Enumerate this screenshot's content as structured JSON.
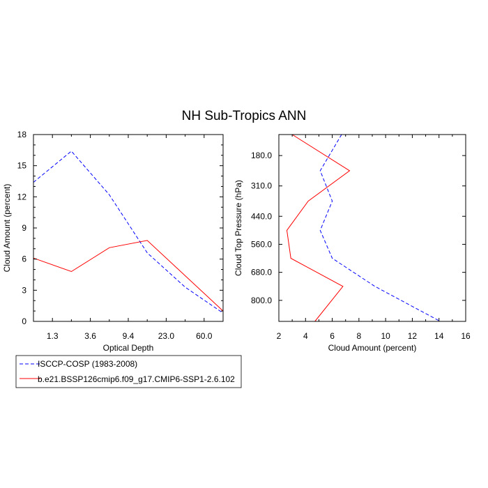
{
  "title": "NH Sub-Tropics ANN",
  "colors": {
    "obs": "#0000ff",
    "model": "#ff0000"
  },
  "legend": {
    "items": [
      {
        "label": "ISCCP-COSP (1983-2008)",
        "color": "#0000ff",
        "style": "dashed"
      },
      {
        "label": "b.e21.BSSP126cmip6.f09_g17.CMIP6-SSP1-2.6.102",
        "color": "#ff0000",
        "style": "solid"
      }
    ]
  },
  "chart_data": [
    {
      "type": "line",
      "title": "NH Sub-Tropics ANN",
      "xlabel": "Optical Depth",
      "ylabel": "Cloud Amount (percent)",
      "categories": [
        "0.3",
        "1.3",
        "2.5",
        "3.6",
        "6.5",
        "9.4",
        "15.0",
        "23.0",
        "41.0",
        "60.0",
        "100.0"
      ],
      "xtick_labels": [
        "1.3",
        "3.6",
        "9.4",
        "23.0",
        "60.0"
      ],
      "ylim": [
        0,
        18
      ],
      "yticks": [
        0,
        3,
        6,
        9,
        12,
        15,
        18
      ],
      "grid": false,
      "series": [
        {
          "name": "ISCCP-COSP (1983-2008)",
          "color": "#0000ff",
          "style": "dashed",
          "x": [
            0.3,
            2.5,
            6.5,
            15.0,
            41.0,
            100.0
          ],
          "values": [
            13.4,
            16.4,
            12.2,
            6.6,
            3.3,
            0.8
          ]
        },
        {
          "name": "b.e21.BSSP126cmip6.f09_g17.CMIP6-SSP1-2.6.102",
          "color": "#ff0000",
          "style": "solid",
          "x": [
            0.3,
            2.5,
            6.5,
            15.0,
            41.0,
            100.0
          ],
          "values": [
            6.1,
            4.8,
            7.1,
            7.8,
            4.4,
            1.0
          ]
        }
      ]
    },
    {
      "type": "line",
      "title": "",
      "xlabel": "Cloud Amount (percent)",
      "ylabel": "Cloud Top Pressure (hPa)",
      "xlim": [
        2,
        16
      ],
      "xticks": [
        2,
        4,
        6,
        8,
        10,
        12,
        14,
        16
      ],
      "ylim": [
        90,
        890
      ],
      "y_reversed": true,
      "yticks": [
        180.0,
        310.0,
        440.0,
        560.0,
        680.0,
        800.0
      ],
      "ytick_labels": [
        "180.0",
        "310.0",
        "440.0",
        "560.0",
        "680.0",
        "800.0"
      ],
      "grid": false,
      "series": [
        {
          "name": "ISCCP-COSP (1983-2008)",
          "color": "#0000ff",
          "style": "dashed",
          "y": [
            90,
            245,
            375,
            500,
            620,
            740,
            890
          ],
          "values": [
            6.7,
            5.1,
            6.0,
            5.1,
            6.0,
            9.2,
            14.1
          ]
        },
        {
          "name": "b.e21.BSSP126cmip6.f09_g17.CMIP6-SSP1-2.6.102",
          "color": "#ff0000",
          "style": "solid",
          "y": [
            90,
            245,
            375,
            500,
            620,
            740,
            890
          ],
          "values": [
            3.0,
            7.3,
            4.2,
            2.6,
            2.9,
            6.8,
            4.7
          ]
        }
      ]
    }
  ]
}
